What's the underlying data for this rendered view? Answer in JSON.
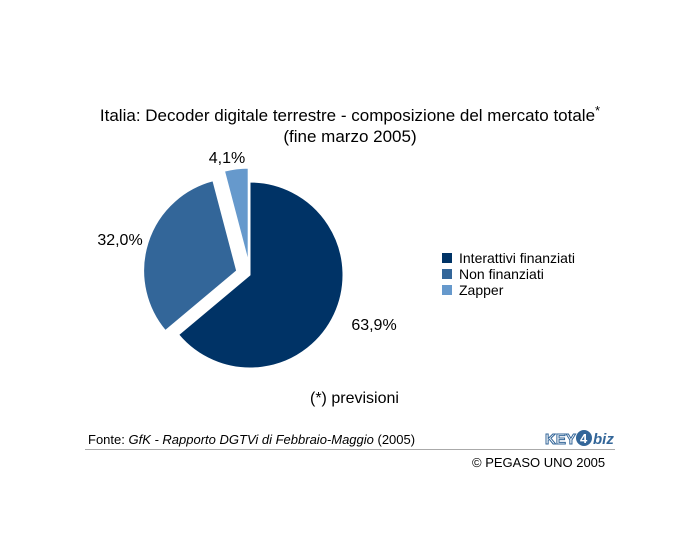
{
  "chart_data": {
    "type": "pie",
    "title": "Italia: Decoder digitale terrestre - composizione del mercato totale",
    "title_marker": "*",
    "subtitle": "(fine marzo 2005)",
    "slices": [
      {
        "name": "Interattivi finanziati",
        "value": 63.9,
        "label": "63,9%",
        "color": "#003366"
      },
      {
        "name": "Non finanziati",
        "value": 32.0,
        "label": "32,0%",
        "color": "#336699"
      },
      {
        "name": "Zapper",
        "value": 4.1,
        "label": "4,1%",
        "color": "#6699cc"
      }
    ],
    "legend_position": "right"
  },
  "note": {
    "marker": "(*)",
    "text": "previsioni"
  },
  "source": {
    "prefix": "Fonte: ",
    "work": "GfK - Rapporto DGTVi di Febbraio-Maggio",
    "year": " (2005)"
  },
  "copyright": "© PEGASO UNO 2005",
  "logo": {
    "text_a": "KEY",
    "text_b": "4",
    "text_c": "biz",
    "color": "#336699"
  }
}
